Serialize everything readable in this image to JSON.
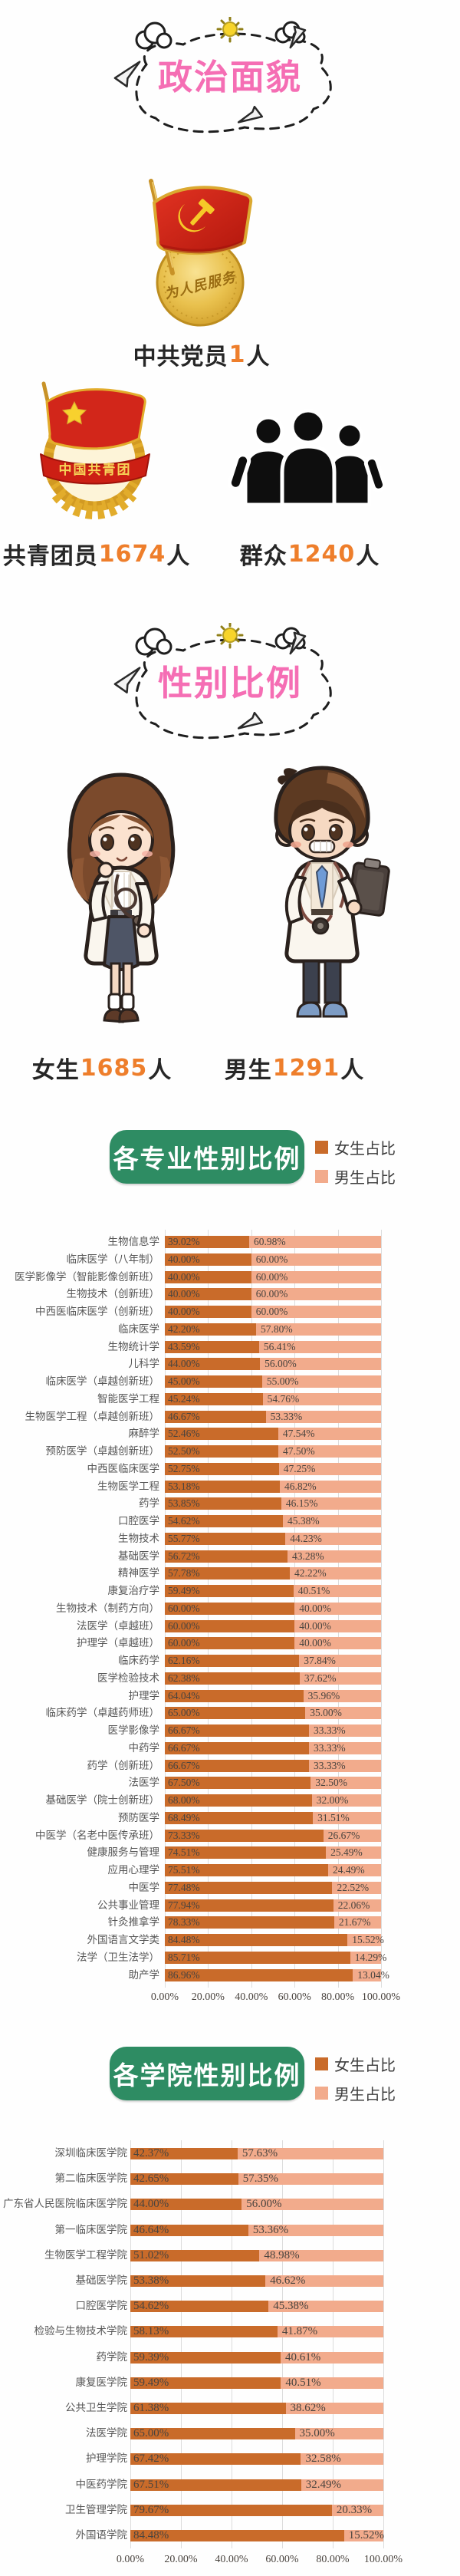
{
  "colors": {
    "pink": "#f56eb4",
    "orange": "#ee7e2b",
    "green": "#2e8c63",
    "female": "#c96b2a",
    "male": "#f2ab8c",
    "ink": "#262626"
  },
  "section_political": {
    "title": "政治面貌",
    "party": {
      "label": "中共党员",
      "count": "1",
      "suffix": "人"
    },
    "league": {
      "label": "共青团员",
      "count": "1674",
      "suffix": "人"
    },
    "masses": {
      "label": "群众",
      "count": "1240",
      "suffix": "人"
    }
  },
  "section_gender": {
    "title": "性别比例",
    "female": {
      "label": "女生",
      "count": "1685",
      "suffix": "人"
    },
    "male": {
      "label": "男生",
      "count": "1291",
      "suffix": "人"
    }
  },
  "badges": {
    "party_medal_text": "为人民服务",
    "league_banner_text": "中国共青团"
  },
  "chart_data": [
    {
      "type": "bar",
      "orientation": "horizontal",
      "stacked": true,
      "title": "各专业性别比例",
      "legend": [
        "女生占比",
        "男生占比"
      ],
      "legend_position": "top-right",
      "grid": true,
      "xlim": [
        0,
        100
      ],
      "x_ticks": [
        "0.00%",
        "20.00%",
        "40.00%",
        "60.00%",
        "80.00%",
        "100.00%"
      ],
      "categories": [
        "生物信息学",
        "临床医学（八年制）",
        "医学影像学（智能影像创新班）",
        "生物技术（创新班）",
        "中西医临床医学（创新班）",
        "临床医学",
        "生物统计学",
        "儿科学",
        "临床医学（卓越创新班）",
        "智能医学工程",
        "生物医学工程（卓越创新班）",
        "麻醉学",
        "预防医学（卓越创新班）",
        "中西医临床医学",
        "生物医学工程",
        "药学",
        "口腔医学",
        "生物技术",
        "基础医学",
        "精神医学",
        "康复治疗学",
        "生物技术（制药方向）",
        "法医学（卓越班）",
        "护理学（卓越班）",
        "临床药学",
        "医学检验技术",
        "护理学",
        "临床药学（卓越药师班）",
        "医学影像学",
        "中药学",
        "药学（创新班）",
        "法医学",
        "基础医学（院士创新班）",
        "预防医学",
        "中医学（名老中医传承班）",
        "健康服务与管理",
        "应用心理学",
        "中医学",
        "公共事业管理",
        "针灸推拿学",
        "外国语言文学类",
        "法学（卫生法学）",
        "助产学"
      ],
      "series": [
        {
          "name": "女生占比",
          "color": "#c96b2a",
          "values": [
            39.02,
            40.0,
            40.0,
            40.0,
            40.0,
            42.2,
            43.59,
            44.0,
            45.0,
            45.24,
            46.67,
            52.46,
            52.5,
            52.75,
            53.18,
            53.85,
            54.62,
            55.77,
            56.72,
            57.78,
            59.49,
            60.0,
            60.0,
            60.0,
            62.16,
            62.38,
            64.04,
            65.0,
            66.67,
            66.67,
            66.67,
            67.5,
            68.0,
            68.49,
            73.33,
            74.51,
            75.51,
            77.48,
            77.94,
            78.33,
            84.48,
            85.71,
            86.96
          ]
        },
        {
          "name": "男生占比",
          "color": "#f2ab8c",
          "values": [
            60.98,
            60.0,
            60.0,
            60.0,
            60.0,
            57.8,
            56.41,
            56.0,
            55.0,
            54.76,
            53.33,
            47.54,
            47.5,
            47.25,
            46.82,
            46.15,
            45.38,
            44.23,
            43.28,
            42.22,
            40.51,
            40.0,
            40.0,
            40.0,
            37.84,
            37.62,
            35.96,
            35.0,
            33.33,
            33.33,
            33.33,
            32.5,
            32.0,
            31.51,
            26.67,
            25.49,
            24.49,
            22.52,
            22.06,
            21.67,
            15.52,
            14.29,
            13.04
          ]
        }
      ]
    },
    {
      "type": "bar",
      "orientation": "horizontal",
      "stacked": true,
      "title": "各学院性别比例",
      "legend": [
        "女生占比",
        "男生占比"
      ],
      "legend_position": "top-right",
      "grid": true,
      "xlim": [
        0,
        100
      ],
      "x_ticks": [
        "0.00%",
        "20.00%",
        "40.00%",
        "60.00%",
        "80.00%",
        "100.00%"
      ],
      "categories": [
        "深圳临床医学院",
        "第二临床医学院",
        "广东省人民医院临床医学院",
        "第一临床医学院",
        "生物医学工程学院",
        "基础医学院",
        "口腔医学院",
        "检验与生物技术学院",
        "药学院",
        "康复医学院",
        "公共卫生学院",
        "法医学院",
        "护理学院",
        "中医药学院",
        "卫生管理学院",
        "外国语学院"
      ],
      "series": [
        {
          "name": "女生占比",
          "color": "#c96b2a",
          "values": [
            42.37,
            42.65,
            44.0,
            46.64,
            51.02,
            53.38,
            54.62,
            58.13,
            59.39,
            59.49,
            61.38,
            65.0,
            67.42,
            67.51,
            79.67,
            84.48
          ]
        },
        {
          "name": "男生占比",
          "color": "#f2ab8c",
          "values": [
            57.63,
            57.35,
            56.0,
            53.36,
            48.98,
            46.62,
            45.38,
            41.87,
            40.61,
            40.51,
            38.62,
            35.0,
            32.58,
            32.49,
            20.33,
            15.52
          ]
        }
      ]
    }
  ]
}
